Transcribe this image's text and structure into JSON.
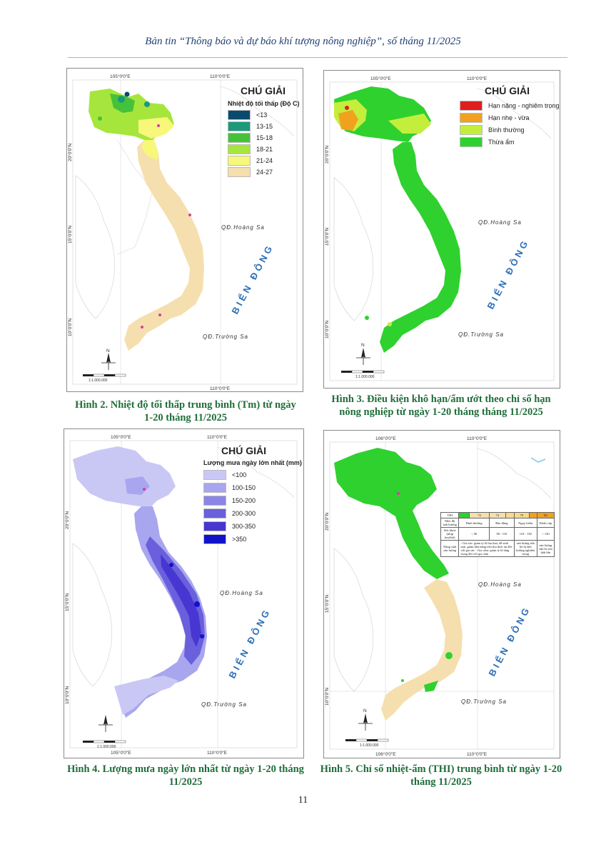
{
  "header": {
    "title": "Bản tin “Thông báo và dự báo khí tượng nông nghiệp”, số tháng 11/2025"
  },
  "common": {
    "sea_label": "BIỂN ĐÔNG",
    "hoang_sa": "QĐ.Hoàng Sa",
    "truong_sa": "QĐ.Trường Sa",
    "north": "N",
    "scale_ratio": "1:1.000.000",
    "legend_title": "CHÚ GIẢI"
  },
  "figures": [
    {
      "caption": "Hình 2. Nhiệt độ tối thấp trung bình (Tm) từ ngày 1-20 tháng 11/2025",
      "legend_subtitle": "Nhiệt độ tối thấp (Độ C)",
      "coords": {
        "top_left": "105°0'0\"E",
        "top_right": "110°0'0\"E",
        "bottom": "110°0'0\"E",
        "lat_20": "20°0'0\"N",
        "lat_15": "15°0'0\"N",
        "lat_10": "10°0'0\"N"
      },
      "legend": [
        {
          "label": "<13",
          "color": "#0a4a6e"
        },
        {
          "label": "13-15",
          "color": "#1a9a7a"
        },
        {
          "label": "15-18",
          "color": "#46c23a"
        },
        {
          "label": "18-21",
          "color": "#a6e63c"
        },
        {
          "label": "21-24",
          "color": "#f7f77a"
        },
        {
          "label": "24-27",
          "color": "#f6dfae"
        }
      ]
    },
    {
      "caption": "Hình 3. Điều kiện khô hạn/ẩm ướt theo chỉ số hạn nông nghiệp từ ngày 1-20 tháng tháng 11/2025",
      "coords": {
        "top_left": "105°0'0\"E",
        "top_right": "110°0'0\"E",
        "lat_20": "20°0'0\"N",
        "lat_15": "15°0'0\"N",
        "lat_10": "10°0'0\"N"
      },
      "legend": [
        {
          "label": "Hạn nặng - nghiêm trọng",
          "color": "#e01e1e"
        },
        {
          "label": "Hạn nhẹ - vừa",
          "color": "#f0a21e"
        },
        {
          "label": "Bình thường",
          "color": "#c4ee3c"
        },
        {
          "label": "Thừa ẩm",
          "color": "#2fd12f"
        }
      ]
    },
    {
      "caption": "Hình 4. Lượng mưa ngày lớn nhất từ ngày 1-20 tháng 11/2025",
      "legend_subtitle": "Lượng mưa ngày lớn nhất (mm)",
      "coords": {
        "top_left": "105°0'0\"E",
        "top_right": "110°0'0\"E",
        "bottom_left": "105°0'0\"E",
        "bottom": "110°0'0\"E",
        "lat_20": "20°0'0\"N",
        "lat_15": "15°0'0\"N",
        "lat_10": "10°0'0\"N"
      },
      "legend": [
        {
          "label": "<100",
          "color": "#c9c8f5"
        },
        {
          "label": "100-150",
          "color": "#a8a6ee"
        },
        {
          "label": "150-200",
          "color": "#8a85e6"
        },
        {
          "label": "200-300",
          "color": "#6a5fdc"
        },
        {
          "label": "300-350",
          "color": "#4836d2"
        },
        {
          "label": ">350",
          "color": "#1212c8"
        }
      ]
    },
    {
      "caption": "Hình 5. Chỉ số nhiệt-ẩm (THI) trung bình từ ngày 1-20 tháng 11/2025",
      "coords": {
        "top_left": "106°0'0\"E",
        "top_right": "110°0'0\"E",
        "bottom_left": "106°0'0\"E",
        "bottom": "110°0'0\"E",
        "lat_20": "20°0'0\"N",
        "lat_15": "15°0'0\"N",
        "lat_10": "10°0'0\"N"
      },
      "thi_table": {
        "head": [
          "THI",
          "",
          "72",
          "74",
          "",
          "79",
          "",
          "84"
        ],
        "rows": [
          [
            "Mức độ ảnh hưởng",
            "Bình thường",
            "Báo động",
            "Nguy hiểm",
            "Khẩn cấp"
          ],
          [
            "Sức khỏe (nhịp tim/thở)",
            "< 90",
            "90 - 110",
            "110 - 130",
            "> 130"
          ],
          [
            "Năng suất sản lượng",
            "- Gia súc: giảm tỷ lệ thụ thai, dễ sinh non, giảm khả năng tiêu thụ thức ăn đối với gia súc - Gia cầm: giảm tỷ lệ tăng trọng đối với gia cầm",
            "sản lượng sữa bò bị ảnh hưởng nghiêm trọng",
            "sản lượng sữa bò tốn thất lớn"
          ]
        ],
        "colors": [
          "#2fd12f",
          "#f6dfae",
          "#f7d98a",
          "#f0a21e"
        ]
      }
    }
  ],
  "page_number": "11"
}
